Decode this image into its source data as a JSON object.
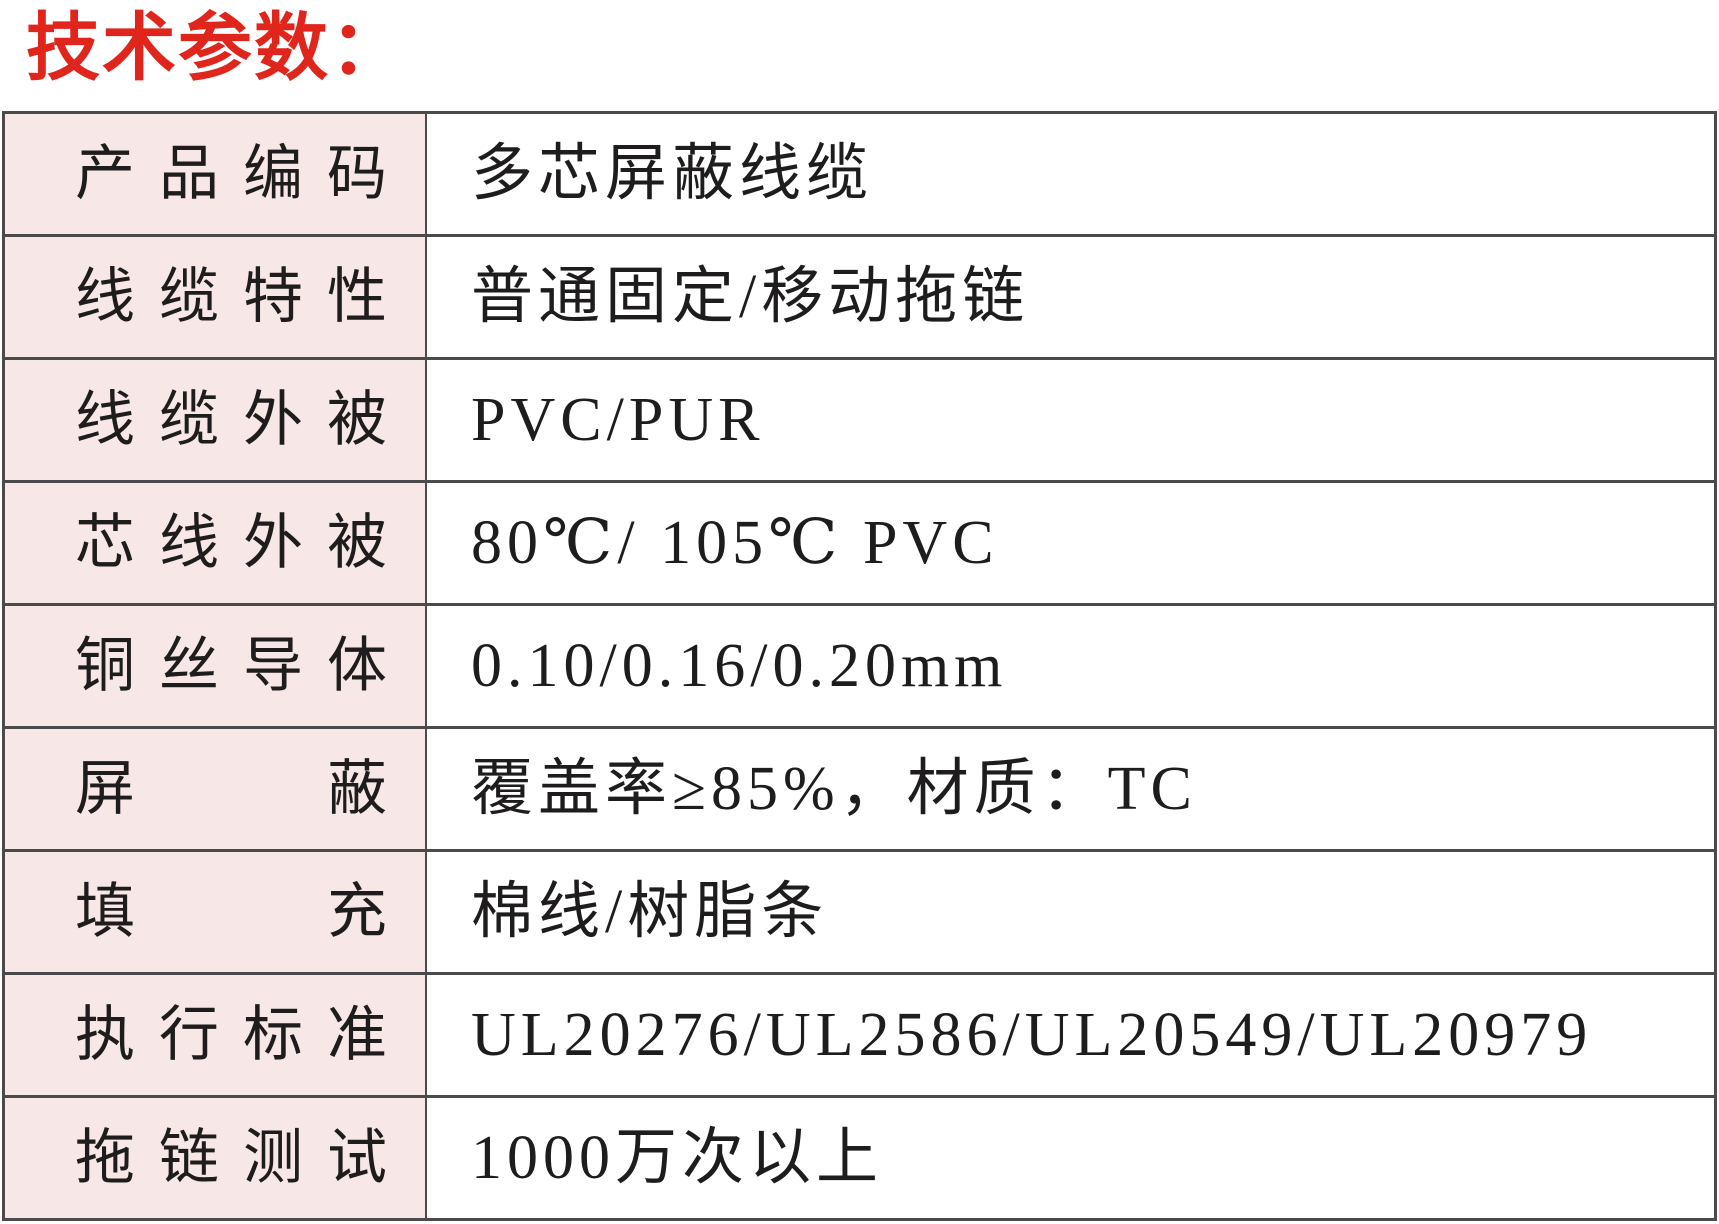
{
  "title": "技术参数：",
  "colors": {
    "title_red": "#e0261c",
    "label_background": "#f7e7e6",
    "border_gray": "#4b4b4b",
    "text": "#1e1c1c"
  },
  "table": {
    "rows": [
      {
        "label": "产品编码",
        "value": "多芯屏蔽线缆"
      },
      {
        "label": "线缆特性",
        "value": "普通固定/移动拖链"
      },
      {
        "label": "线缆外被",
        "value": "PVC/PUR"
      },
      {
        "label": "芯线外被",
        "value": "80℃/ 105℃ PVC"
      },
      {
        "label": "铜丝导体",
        "value": "0.10/0.16/0.20mm"
      },
      {
        "label": "屏蔽",
        "value": "覆盖率≥85%，材质：TC"
      },
      {
        "label": "填充",
        "value": "棉线/树脂条"
      },
      {
        "label": "执行标准",
        "value": "UL20276/UL2586/UL20549/UL20979"
      },
      {
        "label": "拖链测试",
        "value": "1000万次以上"
      }
    ]
  }
}
